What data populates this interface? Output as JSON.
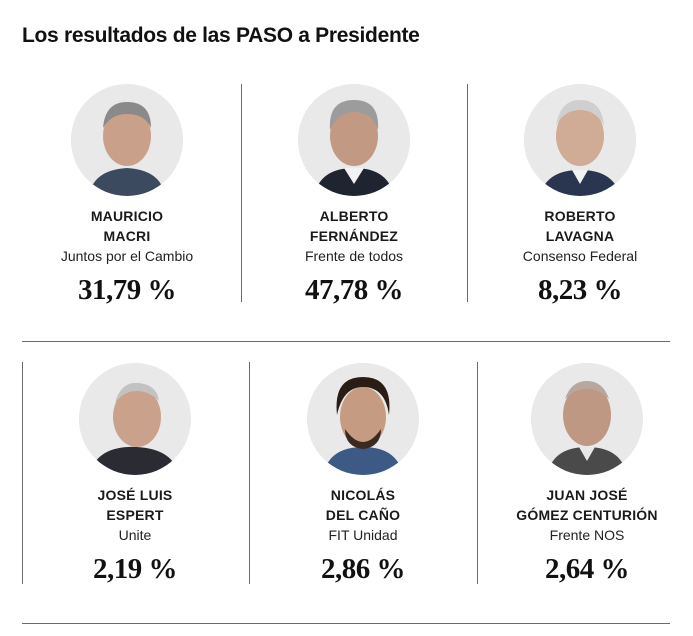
{
  "title": "Los resultados de las PASO a Presidente",
  "candidates": [
    {
      "name_line1": "MAURICIO",
      "name_line2": "MACRI",
      "party": "Juntos por el Cambio",
      "percent": "31,79 %",
      "icon": "portrait-macri"
    },
    {
      "name_line1": "ALBERTO",
      "name_line2": "FERNÁNDEZ",
      "party": "Frente de todos",
      "percent": "47,78 %",
      "icon": "portrait-fernandez"
    },
    {
      "name_line1": "ROBERTO",
      "name_line2": "LAVAGNA",
      "party": "Consenso Federal",
      "percent": "8,23 %",
      "icon": "portrait-lavagna"
    },
    {
      "name_line1": "JOSÉ LUIS",
      "name_line2": "ESPERT",
      "party": "Unite",
      "percent": "2,19 %",
      "icon": "portrait-espert"
    },
    {
      "name_line1": "NICOLÁS",
      "name_line2": "DEL CAÑO",
      "party": "FIT Unidad",
      "percent": "2,86 %",
      "icon": "portrait-del-cano"
    },
    {
      "name_line1": "JUAN JOSÉ",
      "name_line2": "GÓMEZ CENTURIÓN",
      "party": "Frente NOS",
      "percent": "2,64 %",
      "icon": "portrait-gomez-centurion"
    }
  ]
}
